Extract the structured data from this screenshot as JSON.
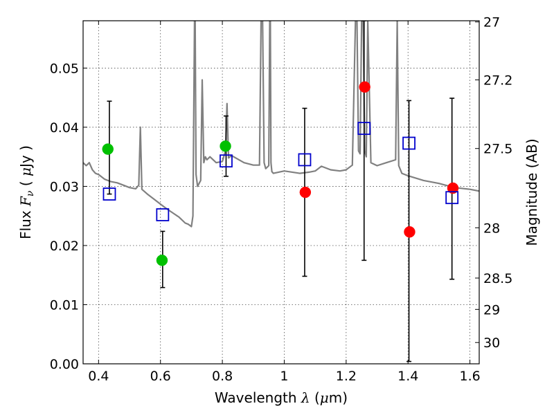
{
  "chart_data": {
    "type": "scatter",
    "xlabel": "Wavelength λ (μm)",
    "ylabel": "Flux F_ν ( μJy )",
    "y2label": "Magnitude (AB)",
    "xlim": [
      0.35,
      1.63
    ],
    "ylim": [
      0.0,
      0.058
    ],
    "grid": true,
    "xticks": [
      0.4,
      0.6,
      0.8,
      1.0,
      1.2,
      1.4,
      1.6
    ],
    "xtick_labels": [
      "0.4",
      "0.6",
      "0.8",
      "1",
      "1.2",
      "1.4",
      "1.6"
    ],
    "yticks": [
      0.0,
      0.01,
      0.02,
      0.03,
      0.04,
      0.05
    ],
    "ytick_labels": [
      "0.00",
      "0.01",
      "0.02",
      "0.03",
      "0.04",
      "0.05"
    ],
    "y2ticks": [
      {
        "label": "27",
        "flux": 0.0578
      },
      {
        "label": "27.2",
        "flux": 0.048
      },
      {
        "label": "27.5",
        "flux": 0.0364
      },
      {
        "label": "28",
        "flux": 0.023
      },
      {
        "label": "28.5",
        "flux": 0.0145
      },
      {
        "label": "29",
        "flux": 0.0092
      },
      {
        "label": "30",
        "flux": 0.0036
      }
    ],
    "model_spectrum": {
      "color": "#808080",
      "x": [
        0.35,
        0.36,
        0.37,
        0.38,
        0.39,
        0.4,
        0.42,
        0.44,
        0.46,
        0.48,
        0.5,
        0.52,
        0.53,
        0.535,
        0.54,
        0.56,
        0.58,
        0.6,
        0.62,
        0.64,
        0.66,
        0.68,
        0.69,
        0.7,
        0.705,
        0.71,
        0.712,
        0.715,
        0.72,
        0.73,
        0.735,
        0.74,
        0.745,
        0.75,
        0.76,
        0.78,
        0.8,
        0.81,
        0.815,
        0.82,
        0.83,
        0.85,
        0.87,
        0.9,
        0.92,
        0.925,
        0.93,
        0.935,
        0.94,
        0.95,
        0.953,
        0.955,
        0.957,
        0.96,
        0.965,
        1.0,
        1.05,
        1.08,
        1.1,
        1.12,
        1.15,
        1.18,
        1.2,
        1.22,
        1.23,
        1.235,
        1.24,
        1.245,
        1.25,
        1.255,
        1.26,
        1.265,
        1.27,
        1.28,
        1.3,
        1.33,
        1.36,
        1.365,
        1.37,
        1.38,
        1.4,
        1.45,
        1.5,
        1.55,
        1.6,
        1.63
      ],
      "y": [
        0.034,
        0.0335,
        0.034,
        0.0328,
        0.0322,
        0.032,
        0.0312,
        0.0308,
        0.0306,
        0.0302,
        0.0298,
        0.0296,
        0.0302,
        0.04,
        0.0295,
        0.0286,
        0.0278,
        0.027,
        0.0262,
        0.0255,
        0.0248,
        0.0238,
        0.0236,
        0.0232,
        0.025,
        0.058,
        0.058,
        0.032,
        0.03,
        0.031,
        0.048,
        0.034,
        0.035,
        0.0345,
        0.035,
        0.034,
        0.0342,
        0.036,
        0.044,
        0.0348,
        0.0352,
        0.0346,
        0.034,
        0.0336,
        0.0336,
        0.058,
        0.058,
        0.034,
        0.033,
        0.0335,
        0.058,
        0.058,
        0.034,
        0.0325,
        0.0322,
        0.0326,
        0.0322,
        0.0324,
        0.0326,
        0.0334,
        0.0328,
        0.0326,
        0.0328,
        0.0336,
        0.058,
        0.058,
        0.036,
        0.0355,
        0.058,
        0.058,
        0.036,
        0.035,
        0.058,
        0.034,
        0.0335,
        0.034,
        0.0345,
        0.058,
        0.0335,
        0.0322,
        0.0318,
        0.031,
        0.0305,
        0.0298,
        0.0295,
        0.0292
      ]
    },
    "series": [
      {
        "marker": "circle",
        "color": "#00c000",
        "x": [
          0.43,
          0.605,
          0.81
        ],
        "y": [
          0.0363,
          0.0175,
          0.0368
        ]
      },
      {
        "marker": "circle",
        "color": "#ff0000",
        "x": [
          1.068,
          1.26,
          1.405,
          1.545
        ],
        "y": [
          0.029,
          0.0468,
          0.0223,
          0.0297
        ]
      },
      {
        "marker": "open-square",
        "color": "#0000cc",
        "x": [
          0.435,
          0.607,
          0.812,
          1.066,
          1.258,
          1.403,
          1.542
        ],
        "y": [
          0.0287,
          0.0252,
          0.0343,
          0.0345,
          0.0398,
          0.0373,
          0.0281
        ],
        "yerr_low": [
          0.0287,
          0.0129,
          0.0317,
          0.0148,
          0.0175,
          0.0004,
          0.0143
        ],
        "yerr_high": [
          0.0444,
          0.0224,
          0.0419,
          0.0432,
          0.058,
          0.0445,
          0.0449
        ]
      }
    ]
  }
}
